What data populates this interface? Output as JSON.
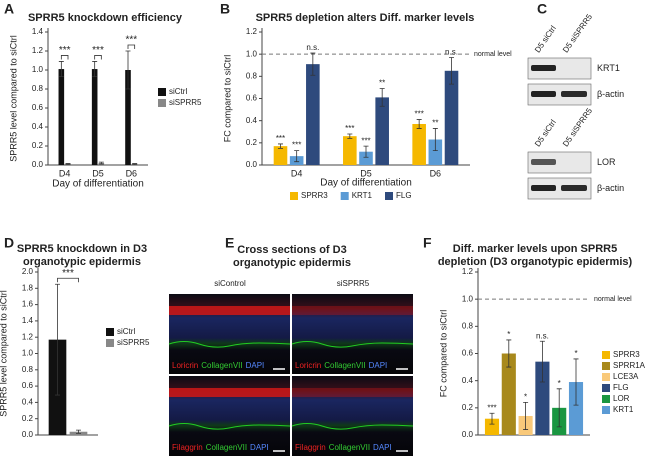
{
  "chart_data": [
    {
      "type": "bar",
      "label": "A",
      "title": [
        "SPRR5 knockdown efficiency"
      ],
      "ylabel": "SPRR5 level compared to siCtrl",
      "xlabel": "Day of differentiation",
      "categories": [
        "D4",
        "D5",
        "D6"
      ],
      "series": [
        {
          "name": "siCtrl",
          "color": "#111111",
          "values": [
            1.01,
            1.01,
            1.0
          ],
          "errors": [
            0.08,
            0.08,
            0.2
          ]
        },
        {
          "name": "siSPRR5",
          "color": "#888888",
          "values": [
            0.01,
            0.02,
            0.01
          ],
          "errors": [
            0.005,
            0.01,
            0.005
          ]
        }
      ],
      "annotations": [
        "***",
        "***",
        "***"
      ],
      "ylim": [
        0,
        1.4
      ],
      "yticks": [
        {
          "value": 0,
          "label": "0.0"
        },
        0.2,
        0.4,
        0.6,
        0.8,
        {
          "value": 1,
          "label": "1.0"
        },
        1.2,
        1.4
      ]
    },
    {
      "type": "bar",
      "label": "B",
      "title": [
        "SPRR5 depletion alters Diff. marker levels"
      ],
      "ylabel": "FC compared to siCtrl",
      "xlabel": "Day of differentiation",
      "categories": [
        "D4",
        "D5",
        "D6"
      ],
      "series": [
        {
          "name": "SPRR3",
          "color": "#f5b800",
          "values": [
            0.17,
            0.26,
            0.37
          ],
          "errors": [
            0.02,
            0.02,
            0.04
          ],
          "annotations": [
            "***",
            "***",
            "***"
          ]
        },
        {
          "name": "KRT1",
          "color": "#5b9bd5",
          "values": [
            0.08,
            0.12,
            0.23
          ],
          "errors": [
            0.05,
            0.05,
            0.1
          ],
          "annotations": [
            "***",
            "***",
            "**"
          ]
        },
        {
          "name": "FLG",
          "color": "#2e4a7d",
          "values": [
            0.91,
            0.61,
            0.85
          ],
          "errors": [
            0.1,
            0.08,
            0.12
          ],
          "annotations": [
            "n.s.",
            "**",
            "n.s."
          ]
        }
      ],
      "reference_line": {
        "value": 1,
        "label": "normal level"
      },
      "ylim": [
        0,
        1.2
      ],
      "yticks": [
        {
          "value": 0,
          "label": "0.0"
        },
        0.2,
        0.4,
        0.6,
        0.8,
        {
          "value": 1,
          "label": "1.0"
        },
        1.2
      ]
    },
    {
      "type": "bar",
      "label": "D",
      "title": [
        "SPRR5 knockdown in D3",
        "organotypic epidermis"
      ],
      "ylabel": "SPRR5 level compared to siCtrl",
      "series": [
        {
          "name": "siCtrl",
          "color": "#111111",
          "values": [
            1.17
          ],
          "errors": [
            0.68
          ]
        },
        {
          "name": "siSPRR5",
          "color": "#888888",
          "values": [
            0.04
          ],
          "errors": [
            0.02
          ]
        }
      ],
      "annotations": [
        "***"
      ],
      "ylim": [
        0,
        2
      ],
      "yticks": [
        {
          "value": 0,
          "label": "0.0"
        },
        0.2,
        0.4,
        0.6,
        0.8,
        {
          "value": 1,
          "label": "1.0"
        },
        1.2,
        1.4,
        1.6,
        1.8,
        {
          "value": 2,
          "label": "2.0"
        }
      ]
    },
    {
      "type": "bar",
      "label": "F",
      "title": [
        "Diff. marker levels upon SPRR5",
        "depletion (D3 organotypic epidermis)"
      ],
      "ylabel": "FC compared to siCtrl",
      "series": [
        {
          "name": "SPRR3",
          "color": "#f5b800",
          "values": [
            0.12
          ],
          "errors": [
            0.04
          ],
          "annotations": [
            "***"
          ]
        },
        {
          "name": "SPRR1A",
          "color": "#a8891c",
          "values": [
            0.6
          ],
          "errors": [
            0.1
          ],
          "annotations": [
            "*"
          ]
        },
        {
          "name": "LCE3A",
          "color": "#f9c97a",
          "values": [
            0.14
          ],
          "errors": [
            0.1
          ],
          "annotations": [
            "*"
          ]
        },
        {
          "name": "FLG",
          "color": "#2e4a7d",
          "values": [
            0.54
          ],
          "errors": [
            0.15
          ],
          "annotations": [
            "n.s."
          ]
        },
        {
          "name": "LOR",
          "color": "#1a9641",
          "values": [
            0.2
          ],
          "errors": [
            0.14
          ],
          "annotations": [
            "*"
          ]
        },
        {
          "name": "KRT1",
          "color": "#5b9bd5",
          "values": [
            0.39
          ],
          "errors": [
            0.17
          ],
          "annotations": [
            "*"
          ]
        }
      ],
      "reference_line": {
        "value": 1,
        "label": "normal level"
      },
      "ylim": [
        0,
        1.2
      ],
      "yticks": [
        {
          "value": 0,
          "label": "0.0"
        },
        0.2,
        0.4,
        0.6,
        0.8,
        {
          "value": 1,
          "label": "1.0"
        },
        1.2
      ]
    }
  ],
  "panels": {
    "C": {
      "label": "C",
      "blots": [
        {
          "lanes": [
            "D5 siCtrl",
            "D5 siSPRR5"
          ],
          "bands": [
            "KRT1",
            "β-actin"
          ]
        },
        {
          "lanes": [
            "D5 siCtrl",
            "D5 siSPRR5"
          ],
          "bands": [
            "LOR",
            "β-actin"
          ]
        }
      ]
    },
    "E": {
      "label": "E",
      "title": [
        "Cross sections of D3",
        "organotypic epidermis"
      ],
      "columns": [
        "siControl",
        "siSPRR5"
      ],
      "stains": [
        [
          "Loricrin",
          "CollagenVII",
          "DAPI"
        ],
        [
          "Filaggrin",
          "CollagenVII",
          "DAPI"
        ]
      ]
    }
  }
}
